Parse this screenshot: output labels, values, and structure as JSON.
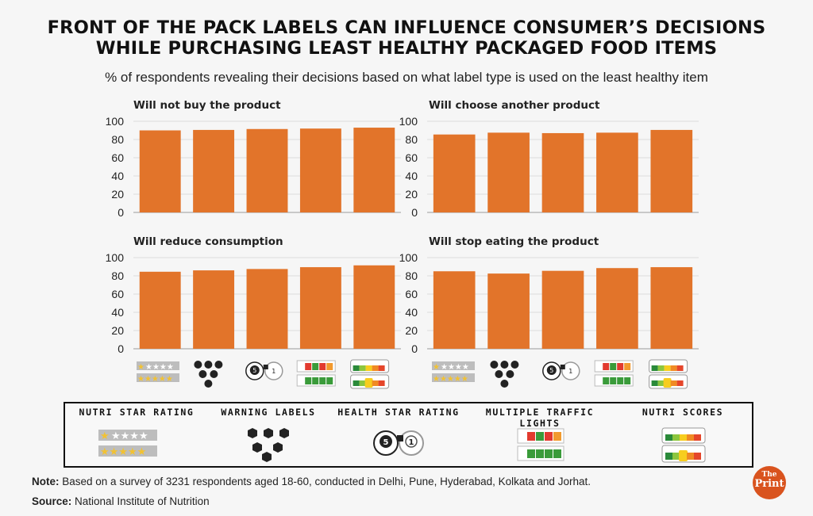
{
  "header": {
    "title_line1": "FRONT OF THE PACK LABELS CAN INFLUENCE CONSUMER’S DECISIONS",
    "title_line2": "WHILE PURCHASING LEAST HEALTHY PACKAGED FOOD ITEMS",
    "subtitle": "% of respondents revealing their decisions based on what label type is used on the least healthy item"
  },
  "colors": {
    "bar": "#e2742a",
    "grid": "#dcdcdc",
    "axis": "#9a9a9a"
  },
  "chart_data": [
    {
      "type": "bar",
      "title": "Will not buy the product",
      "categories": [
        "Nutri Star Rating",
        "Warning Labels",
        "Health Star Rating",
        "Multiple Traffic Lights",
        "Nutri Scores"
      ],
      "values": [
        90,
        90.5,
        91.5,
        92,
        93
      ],
      "ylim": [
        0,
        100
      ],
      "yticks": [
        0,
        20,
        40,
        60,
        80,
        100
      ]
    },
    {
      "type": "bar",
      "title": "Will choose another product",
      "categories": [
        "Nutri Star Rating",
        "Warning Labels",
        "Health Star Rating",
        "Multiple Traffic Lights",
        "Nutri Scores"
      ],
      "values": [
        85.5,
        87.5,
        87,
        87.5,
        90.5
      ],
      "ylim": [
        0,
        100
      ],
      "yticks": [
        0,
        20,
        40,
        60,
        80,
        100
      ]
    },
    {
      "type": "bar",
      "title": "Will reduce consumption",
      "categories": [
        "Nutri Star Rating",
        "Warning Labels",
        "Health Star Rating",
        "Multiple Traffic Lights",
        "Nutri Scores"
      ],
      "values": [
        84.5,
        86,
        87.5,
        89.5,
        91.5
      ],
      "ylim": [
        0,
        100
      ],
      "yticks": [
        0,
        20,
        40,
        60,
        80,
        100
      ]
    },
    {
      "type": "bar",
      "title": "Will stop eating the product",
      "categories": [
        "Nutri Star Rating",
        "Warning Labels",
        "Health Star Rating",
        "Multiple Traffic Lights",
        "Nutri Scores"
      ],
      "values": [
        85,
        82.5,
        85.5,
        88.5,
        89.5
      ],
      "ylim": [
        0,
        100
      ],
      "yticks": [
        0,
        20,
        40,
        60,
        80,
        100
      ]
    }
  ],
  "legend": {
    "items": [
      {
        "label": "NUTRI STAR RATING",
        "icon": "nutri-star-rating-icon"
      },
      {
        "label": "WARNING LABELS",
        "icon": "warning-labels-icon"
      },
      {
        "label": "HEALTH STAR RATING",
        "icon": "health-star-rating-icon"
      },
      {
        "label": "MULTIPLE TRAFFIC LIGHTS",
        "icon": "multiple-traffic-lights-icon"
      },
      {
        "label": "NUTRI SCORES",
        "icon": "nutri-scores-icon"
      }
    ]
  },
  "footer": {
    "note_label": "Note:",
    "note_text": "Based on a survey of 3231 respondents aged 18-60, conducted in Delhi, Pune, Hyderabad, Kolkata and Jorhat.",
    "source_label": "Source:",
    "source_text": "National Institute of Nutrition",
    "logo_the": "The",
    "logo_print": "Print"
  }
}
